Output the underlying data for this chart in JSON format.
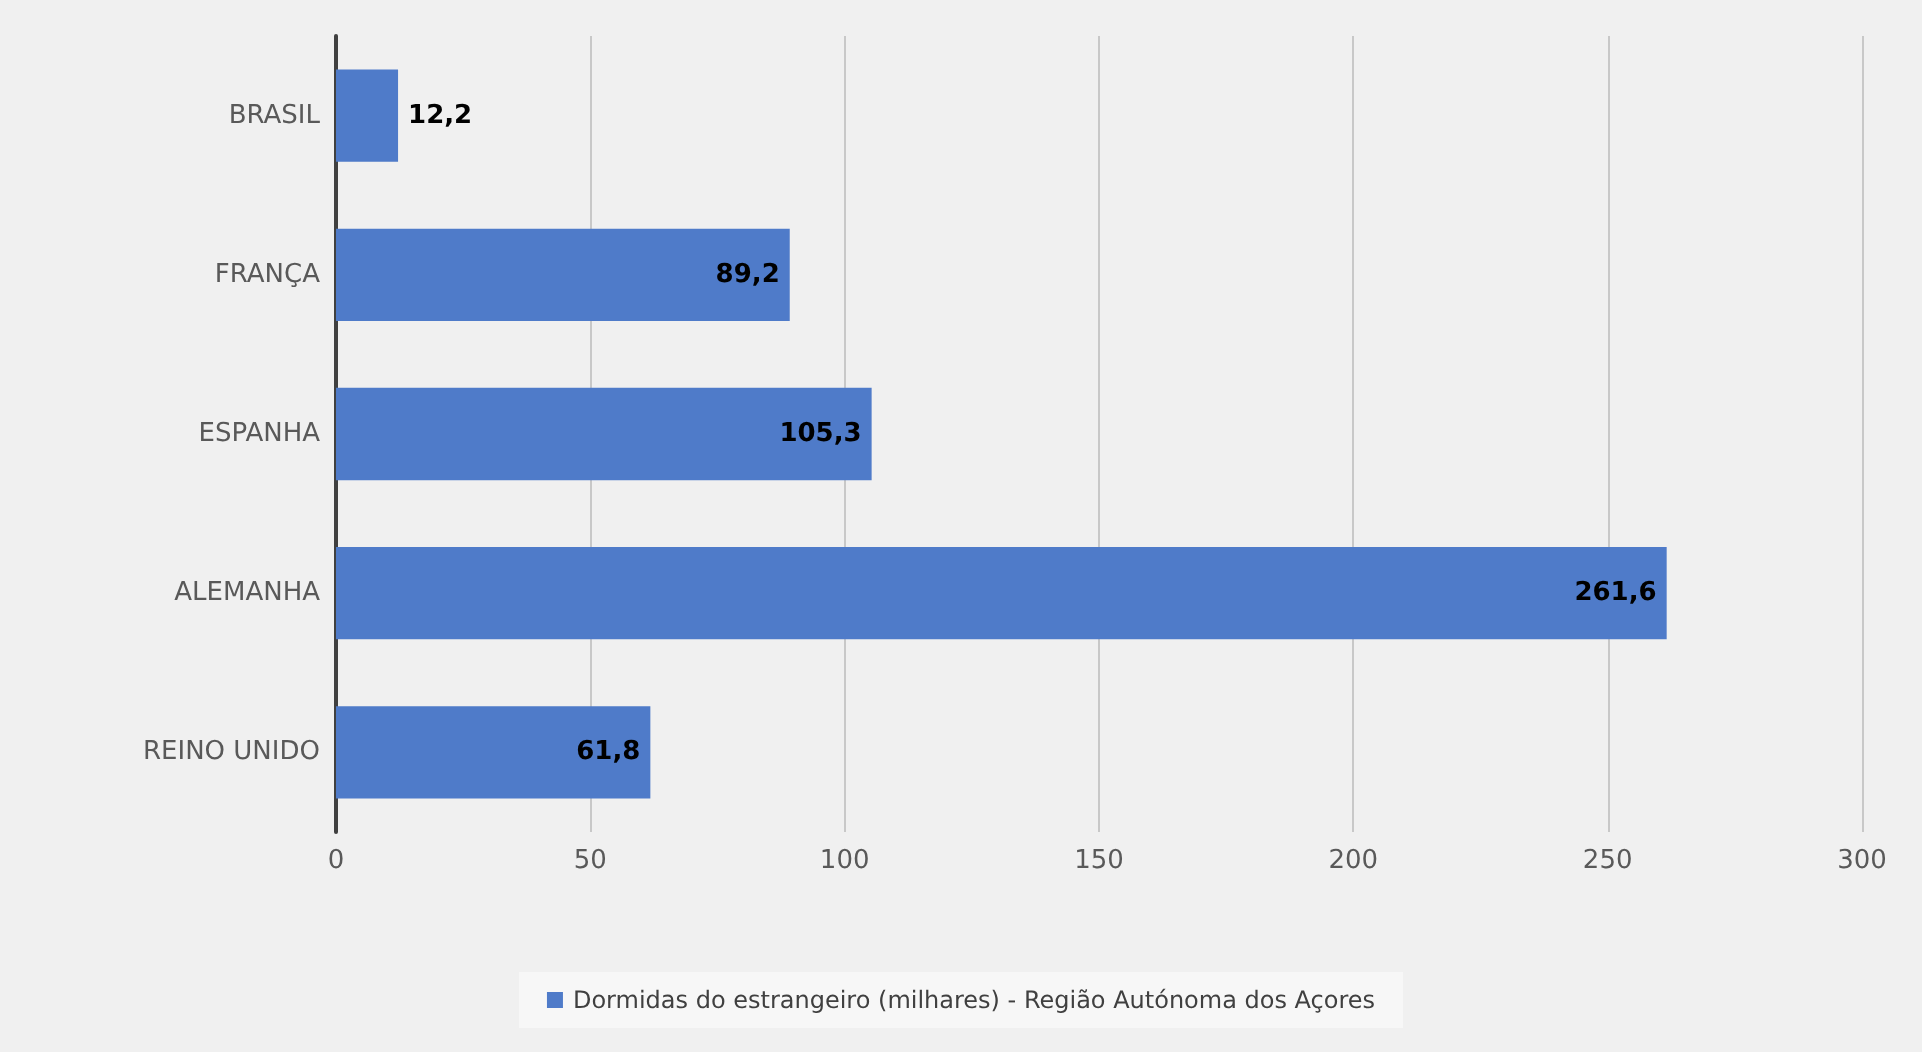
{
  "chart_data": {
    "type": "bar",
    "orientation": "horizontal",
    "categories": [
      "BRASIL",
      "FRANÇA",
      "ESPANHA",
      "ALEMANHA",
      "REINO UNIDO"
    ],
    "series": [
      {
        "name": "Dormidas do estrangeiro (milhares) - Região Autónoma dos Açores",
        "color": "#4f7bc9",
        "values": [
          12.2,
          89.2,
          105.3,
          261.6,
          61.8
        ],
        "value_labels": [
          "12,2",
          "89,2",
          "105,3",
          "261,6",
          "61,8"
        ]
      }
    ],
    "xlim": [
      0,
      300
    ],
    "xticks": [
      0,
      50,
      100,
      150,
      200,
      250,
      300
    ],
    "grid": "x",
    "legend": "bottom"
  }
}
